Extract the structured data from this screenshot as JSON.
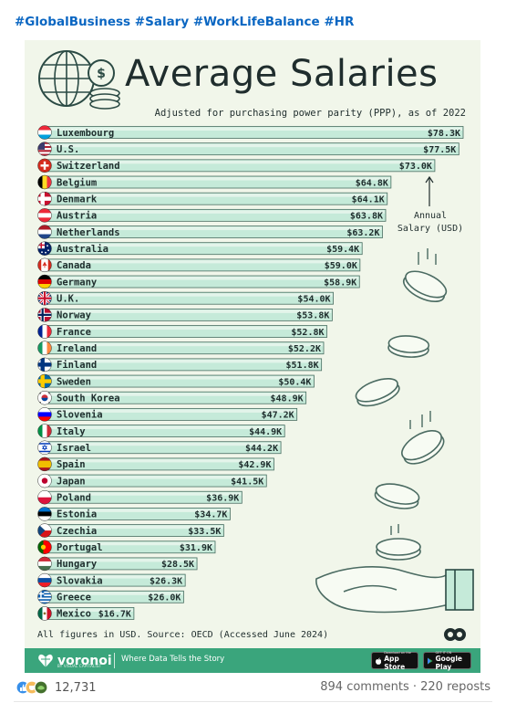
{
  "post": {
    "hashtags": "#GlobalBusiness #Salary #WorkLifeBalance #HR",
    "reaction_count": "12,731",
    "comments_reposts": "894 comments · 220 reposts"
  },
  "infographic": {
    "title": "Average Salaries",
    "subtitle": "Adjusted for purchasing power parity (PPP), as of 2022",
    "annotation": "Annual\nSalary (USD)",
    "footnote": "All figures in USD. Source: OECD (Accessed June 2024)",
    "brand": "voronoi",
    "brand_sub": "BY VISUAL CAPITALIST",
    "tagline": "Where Data Tells the Story",
    "app_store_small": "Download on the",
    "app_store": "App Store",
    "google_play_small": "GET IT ON",
    "google_play": "Google Play",
    "colors": {
      "background": "#f1f6ea",
      "bar_fill": "#c5ead9",
      "bar_fill_light": "#e3f4ea",
      "bar_stroke": "#4a6e62",
      "text": "#1f2d2d",
      "footer": "#3aa57c",
      "hashtag": "#0a66c2"
    }
  },
  "chart_data": {
    "type": "bar",
    "orientation": "horizontal",
    "title": "Average Salaries",
    "subtitle": "Adjusted for purchasing power parity (PPP), as of 2022",
    "unit": "USD",
    "categories": [
      "Luxembourg",
      "U.S.",
      "Switzerland",
      "Belgium",
      "Denmark",
      "Austria",
      "Netherlands",
      "Australia",
      "Canada",
      "Germany",
      "U.K.",
      "Norway",
      "France",
      "Ireland",
      "Finland",
      "Sweden",
      "South Korea",
      "Slovenia",
      "Italy",
      "Israel",
      "Spain",
      "Japan",
      "Poland",
      "Estonia",
      "Czechia",
      "Portugal",
      "Hungary",
      "Slovakia",
      "Greece",
      "Mexico"
    ],
    "values": [
      78.3,
      77.5,
      73.0,
      64.8,
      64.1,
      63.8,
      63.2,
      59.4,
      59.0,
      58.9,
      54.0,
      53.8,
      52.8,
      52.2,
      51.8,
      50.4,
      48.9,
      47.2,
      44.9,
      44.2,
      42.9,
      41.5,
      36.9,
      34.7,
      33.5,
      31.9,
      28.5,
      26.3,
      26.0,
      16.7
    ],
    "value_labels": [
      "$78.3K",
      "$77.5K",
      "$73.0K",
      "$64.8K",
      "$64.1K",
      "$63.8K",
      "$63.2K",
      "$59.4K",
      "$59.0K",
      "$58.9K",
      "$54.0K",
      "$53.8K",
      "$52.8K",
      "$52.2K",
      "$51.8K",
      "$50.4K",
      "$48.9K",
      "$47.2K",
      "$44.9K",
      "$44.2K",
      "$42.9K",
      "$41.5K",
      "$36.9K",
      "$34.7K",
      "$33.5K",
      "$31.9K",
      "$28.5K",
      "$26.3K",
      "$26.0K",
      "$16.7K"
    ],
    "flags": [
      "flag-luxembourg",
      "flag-us",
      "flag-switzerland",
      "flag-belgium",
      "flag-denmark",
      "flag-austria",
      "flag-netherlands",
      "flag-australia",
      "flag-canada",
      "flag-germany",
      "flag-uk",
      "flag-norway",
      "flag-france",
      "flag-ireland",
      "flag-finland",
      "flag-sweden",
      "flag-south-korea",
      "flag-slovenia",
      "flag-italy",
      "flag-israel",
      "flag-spain",
      "flag-japan",
      "flag-poland",
      "flag-estonia",
      "flag-czechia",
      "flag-portugal",
      "flag-hungary",
      "flag-slovakia",
      "flag-greece",
      "flag-mexico"
    ]
  }
}
